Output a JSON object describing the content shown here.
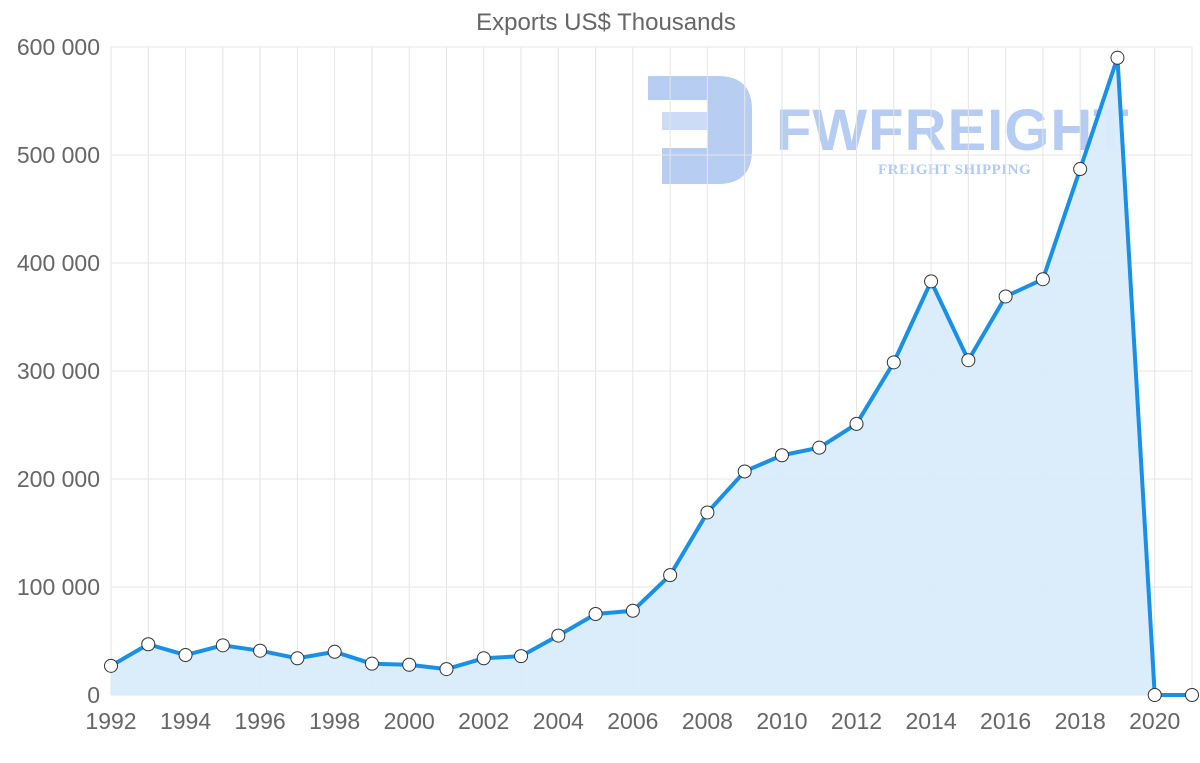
{
  "watermark": {
    "brand": "FWFREIGHT",
    "tagline": "FREIGHT SHIPPING",
    "color": "#aac4f0"
  },
  "colors": {
    "line": "#1a8fe6",
    "fill": "#d9ecfb",
    "grid": "#e5e5e5",
    "text": "#666666"
  },
  "chart_data": {
    "type": "area",
    "title": "Exports US$ Thousands",
    "xlabel": "",
    "ylabel": "",
    "ylim": [
      0,
      600000
    ],
    "yticks": [
      0,
      100000,
      200000,
      300000,
      400000,
      500000,
      600000
    ],
    "ytick_labels": [
      "0",
      "100 000",
      "200 000",
      "300 000",
      "400 000",
      "500 000",
      "600 000"
    ],
    "xlim": [
      1992,
      2021
    ],
    "xticks": [
      1992,
      1994,
      1996,
      1998,
      2000,
      2002,
      2004,
      2006,
      2008,
      2010,
      2012,
      2014,
      2016,
      2018,
      2020
    ],
    "xtick_labels": [
      "1992",
      "1994",
      "1996",
      "1998",
      "2000",
      "2002",
      "2004",
      "2006",
      "2008",
      "2010",
      "2012",
      "2014",
      "2016",
      "2018",
      "2020"
    ],
    "grid": true,
    "x": [
      1992,
      1993,
      1994,
      1995,
      1996,
      1997,
      1998,
      1999,
      2000,
      2001,
      2002,
      2003,
      2004,
      2005,
      2006,
      2007,
      2008,
      2009,
      2010,
      2011,
      2012,
      2013,
      2014,
      2015,
      2016,
      2017,
      2018,
      2019,
      2020,
      2021
    ],
    "series": [
      {
        "name": "Exports US$ Thousands",
        "values": [
          27000,
          47000,
          37000,
          46000,
          41000,
          34000,
          40000,
          29000,
          28000,
          24000,
          34000,
          36000,
          55000,
          75000,
          78000,
          111000,
          169000,
          207000,
          222000,
          229000,
          251000,
          308000,
          383000,
          310000,
          369000,
          385000,
          487000,
          590000,
          0,
          0
        ]
      }
    ]
  }
}
